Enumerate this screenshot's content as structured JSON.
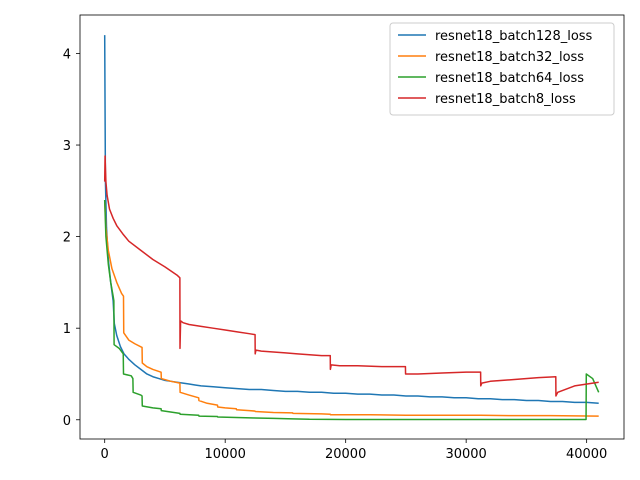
{
  "chart_data": {
    "type": "line",
    "title": "",
    "xlabel": "",
    "ylabel": "",
    "xlim": [
      -2050,
      43100
    ],
    "ylim": [
      -0.21,
      4.42
    ],
    "xticks": [
      {
        "value": 0,
        "label": "0"
      },
      {
        "value": 10000,
        "label": "10000"
      },
      {
        "value": 20000,
        "label": "20000"
      },
      {
        "value": 30000,
        "label": "30000"
      },
      {
        "value": 40000,
        "label": "40000"
      }
    ],
    "yticks": [
      {
        "value": 0,
        "label": "0"
      },
      {
        "value": 1,
        "label": "1"
      },
      {
        "value": 2,
        "label": "2"
      },
      {
        "value": 3,
        "label": "3"
      },
      {
        "value": 4,
        "label": "4"
      }
    ],
    "grid": false,
    "legend_position": "top-right",
    "series": [
      {
        "name": "resnet18_batch128_loss",
        "color": "#1f77b4",
        "x": [
          0,
          60,
          150,
          300,
          500,
          700,
          800,
          1000,
          1300,
          1600,
          2000,
          2500,
          3000,
          3500,
          4000,
          4500,
          5000,
          5500,
          6000,
          6500,
          7000,
          7500,
          8000,
          9000,
          10000,
          11000,
          12000,
          13000,
          14000,
          15000,
          16000,
          17000,
          18000,
          19000,
          20000,
          21000,
          22000,
          23000,
          24000,
          25000,
          26000,
          27000,
          28000,
          29000,
          30000,
          31000,
          32000,
          33000,
          34000,
          35000,
          36000,
          37000,
          38000,
          39000,
          40000,
          41000
        ],
        "y": [
          4.2,
          2.6,
          2.1,
          1.75,
          1.5,
          1.3,
          1.05,
          0.92,
          0.8,
          0.72,
          0.66,
          0.6,
          0.55,
          0.5,
          0.47,
          0.45,
          0.43,
          0.42,
          0.41,
          0.4,
          0.39,
          0.38,
          0.37,
          0.36,
          0.35,
          0.34,
          0.33,
          0.33,
          0.32,
          0.31,
          0.31,
          0.3,
          0.3,
          0.29,
          0.29,
          0.28,
          0.28,
          0.27,
          0.27,
          0.26,
          0.26,
          0.25,
          0.25,
          0.24,
          0.24,
          0.23,
          0.23,
          0.22,
          0.22,
          0.21,
          0.21,
          0.2,
          0.2,
          0.19,
          0.19,
          0.18
        ]
      },
      {
        "name": "resnet18_batch32_loss",
        "color": "#ff7f0e",
        "x": [
          0,
          100,
          300,
          600,
          1000,
          1400,
          1560,
          1580,
          2000,
          2500,
          3100,
          3120,
          3500,
          4000,
          4680,
          4700,
          5500,
          6240,
          6260,
          7000,
          7800,
          7820,
          8500,
          9360,
          9380,
          10000,
          10920,
          10940,
          12000,
          12480,
          12500,
          14000,
          15600,
          15620,
          18000,
          18720,
          18740,
          22000,
          25000,
          28000,
          31200,
          34000,
          37000,
          41000
        ],
        "y": [
          2.4,
          2.1,
          1.85,
          1.65,
          1.5,
          1.38,
          1.35,
          0.95,
          0.87,
          0.83,
          0.79,
          0.62,
          0.58,
          0.55,
          0.52,
          0.45,
          0.42,
          0.4,
          0.3,
          0.27,
          0.24,
          0.21,
          0.18,
          0.16,
          0.14,
          0.13,
          0.12,
          0.11,
          0.1,
          0.095,
          0.09,
          0.08,
          0.075,
          0.07,
          0.065,
          0.06,
          0.055,
          0.055,
          0.05,
          0.05,
          0.05,
          0.045,
          0.045,
          0.04
        ]
      },
      {
        "name": "resnet18_batch64_loss",
        "color": "#2ca02c",
        "x": [
          0,
          100,
          300,
          500,
          700,
          760,
          780,
          1200,
          1540,
          1560,
          2200,
          2340,
          2360,
          3000,
          3100,
          3120,
          4000,
          4680,
          4700,
          6240,
          6260,
          7800,
          7820,
          9360,
          9380,
          10920,
          12480,
          14040,
          15600,
          17000,
          20000,
          25000,
          30000,
          35000,
          39000,
          39950,
          39970,
          40500,
          41000
        ],
        "y": [
          2.4,
          2.0,
          1.7,
          1.5,
          1.35,
          1.3,
          0.82,
          0.78,
          0.72,
          0.5,
          0.48,
          0.45,
          0.3,
          0.27,
          0.26,
          0.15,
          0.13,
          0.12,
          0.1,
          0.07,
          0.06,
          0.05,
          0.04,
          0.035,
          0.03,
          0.025,
          0.02,
          0.015,
          0.01,
          0.005,
          0.003,
          0.003,
          0.003,
          0.003,
          0.003,
          0.003,
          0.5,
          0.45,
          0.3
        ]
      },
      {
        "name": "resnet18_batch8_loss",
        "color": "#d62728",
        "x": [
          0,
          30,
          100,
          200,
          400,
          700,
          1000,
          1500,
          2000,
          3000,
          4000,
          5000,
          6000,
          6240,
          6250,
          6300,
          6500,
          7000,
          8000,
          9000,
          10000,
          11000,
          12000,
          12480,
          12490,
          12550,
          13000,
          14000,
          15000,
          16000,
          17000,
          18000,
          18720,
          18730,
          18800,
          19500,
          21000,
          23000,
          24960,
          24970,
          25100,
          26000,
          28000,
          30000,
          31200,
          31210,
          31300,
          32000,
          34000,
          36000,
          37440,
          37450,
          37600,
          39000,
          41000
        ],
        "y": [
          2.6,
          2.88,
          2.6,
          2.45,
          2.3,
          2.2,
          2.12,
          2.03,
          1.95,
          1.85,
          1.75,
          1.67,
          1.58,
          1.55,
          0.78,
          1.08,
          1.06,
          1.04,
          1.02,
          1.0,
          0.98,
          0.96,
          0.94,
          0.93,
          0.72,
          0.76,
          0.75,
          0.74,
          0.73,
          0.72,
          0.71,
          0.7,
          0.7,
          0.55,
          0.6,
          0.59,
          0.59,
          0.58,
          0.58,
          0.5,
          0.5,
          0.5,
          0.51,
          0.52,
          0.52,
          0.37,
          0.4,
          0.42,
          0.44,
          0.46,
          0.47,
          0.26,
          0.3,
          0.37,
          0.41
        ]
      }
    ]
  }
}
